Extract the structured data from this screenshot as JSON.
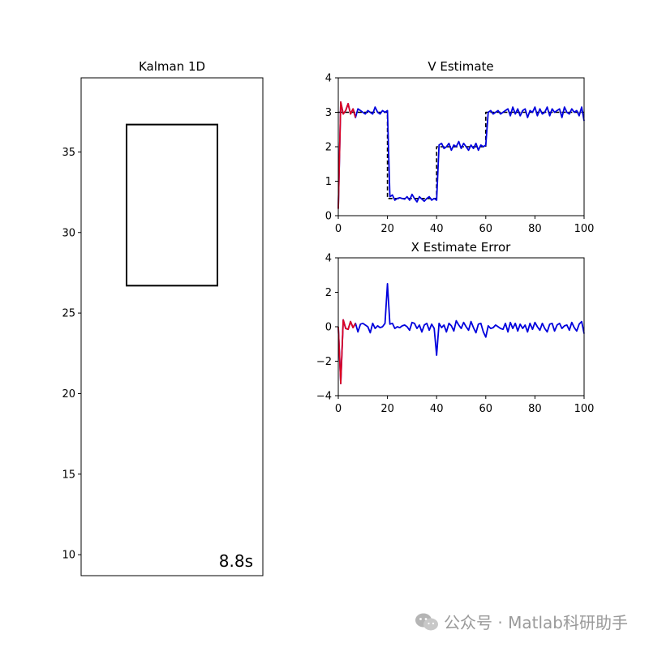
{
  "chart_data": [
    {
      "type": "line",
      "title": "Kalman 1D",
      "xlabel": "",
      "ylabel": "",
      "yticks": [
        "10",
        "15",
        "20",
        "25",
        "30",
        "35"
      ],
      "ylim": [
        8.7,
        39.6
      ],
      "xticks": [],
      "box": {
        "y_bottom": 26.7,
        "y_top": 36.7,
        "color": "#000000"
      },
      "time_label": "8.8s"
    },
    {
      "type": "line",
      "title": "V Estimate",
      "xlabel": "",
      "ylabel": "",
      "xlim": [
        0,
        100
      ],
      "ylim": [
        0,
        4
      ],
      "xticks": [
        "0",
        "20",
        "40",
        "60",
        "80",
        "100"
      ],
      "yticks": [
        "0",
        "1",
        "2",
        "3",
        "4"
      ],
      "series": [
        {
          "role": "truth",
          "color": "#000000",
          "dashed": true,
          "x": [
            0,
            20,
            20,
            40,
            40,
            60,
            60,
            100
          ],
          "y": [
            3,
            3,
            0.5,
            0.5,
            2,
            2,
            3,
            3
          ]
        },
        {
          "role": "estimate",
          "color": "#0000dd",
          "x": [
            0,
            1,
            2,
            3,
            4,
            5,
            6,
            7,
            8,
            9,
            10,
            11,
            12,
            13,
            14,
            15,
            16,
            17,
            18,
            19,
            20,
            21,
            22,
            23,
            24,
            25,
            26,
            27,
            28,
            29,
            30,
            31,
            32,
            33,
            34,
            35,
            36,
            37,
            38,
            39,
            40,
            41,
            42,
            43,
            44,
            45,
            46,
            47,
            48,
            49,
            50,
            51,
            52,
            53,
            54,
            55,
            56,
            57,
            58,
            59,
            60,
            61,
            62,
            63,
            64,
            65,
            66,
            67,
            68,
            69,
            70,
            71,
            72,
            73,
            74,
            75,
            76,
            77,
            78,
            79,
            80,
            81,
            82,
            83,
            84,
            85,
            86,
            87,
            88,
            89,
            90,
            91,
            92,
            93,
            94,
            95,
            96,
            97,
            98,
            99,
            100
          ],
          "y": [
            0.2,
            3.3,
            2.95,
            3.05,
            3.25,
            2.95,
            3.1,
            2.85,
            3.1,
            3.05,
            3.0,
            2.95,
            3.05,
            3.0,
            2.95,
            3.15,
            3.0,
            2.95,
            3.05,
            3.0,
            3.05,
            0.55,
            0.6,
            0.45,
            0.5,
            0.52,
            0.5,
            0.48,
            0.55,
            0.45,
            0.62,
            0.5,
            0.4,
            0.55,
            0.48,
            0.42,
            0.5,
            0.55,
            0.45,
            0.5,
            0.45,
            2.05,
            2.1,
            1.95,
            2.0,
            2.1,
            1.9,
            2.05,
            2.0,
            2.15,
            1.95,
            2.1,
            2.0,
            1.9,
            2.05,
            1.95,
            2.1,
            1.9,
            2.05,
            2.0,
            2.05,
            3.0,
            3.05,
            2.95,
            3.0,
            3.05,
            2.95,
            3.0,
            3.05,
            3.1,
            2.9,
            3.15,
            2.95,
            3.1,
            2.9,
            3.05,
            3.1,
            2.85,
            3.05,
            3.0,
            3.15,
            2.9,
            3.1,
            2.95,
            3.0,
            3.15,
            2.9,
            3.1,
            3.0,
            3.05,
            3.1,
            2.85,
            3.15,
            3.0,
            2.95,
            3.1,
            3.0,
            3.05,
            2.9,
            3.15,
            2.75
          ]
        },
        {
          "role": "early",
          "color": "#dd0022",
          "x": [
            0,
            1,
            2,
            3,
            4,
            5,
            6,
            7
          ],
          "y": [
            0.2,
            3.3,
            2.95,
            3.05,
            3.25,
            2.95,
            3.1,
            2.85
          ]
        }
      ]
    },
    {
      "type": "line",
      "title": "X Estimate Error",
      "xlabel": "",
      "ylabel": "",
      "xlim": [
        0,
        100
      ],
      "ylim": [
        -4,
        4
      ],
      "xticks": [
        "0",
        "20",
        "40",
        "60",
        "80",
        "100"
      ],
      "yticks": [
        "−4",
        "−2",
        "0",
        "2",
        "4"
      ],
      "series": [
        {
          "role": "estimate",
          "color": "#0000dd",
          "x": [
            0,
            1,
            2,
            3,
            4,
            5,
            6,
            7,
            8,
            9,
            10,
            11,
            12,
            13,
            14,
            15,
            16,
            17,
            18,
            19,
            20,
            21,
            22,
            23,
            24,
            25,
            26,
            27,
            28,
            29,
            30,
            31,
            32,
            33,
            34,
            35,
            36,
            37,
            38,
            39,
            40,
            41,
            42,
            43,
            44,
            45,
            46,
            47,
            48,
            49,
            50,
            51,
            52,
            53,
            54,
            55,
            56,
            57,
            58,
            59,
            60,
            61,
            62,
            63,
            64,
            65,
            66,
            67,
            68,
            69,
            70,
            71,
            72,
            73,
            74,
            75,
            76,
            77,
            78,
            79,
            80,
            81,
            82,
            83,
            84,
            85,
            86,
            87,
            88,
            89,
            90,
            91,
            92,
            93,
            94,
            95,
            96,
            97,
            98,
            99,
            100
          ],
          "y": [
            0,
            -3.3,
            0.4,
            -0.1,
            -0.15,
            0.3,
            -0.05,
            0.2,
            -0.3,
            0.15,
            0.2,
            0.1,
            0,
            -0.35,
            0.2,
            -0.1,
            0.05,
            -0.05,
            0,
            0.2,
            2.5,
            0.15,
            0.2,
            -0.1,
            0,
            -0.05,
            0.05,
            0.1,
            0,
            -0.2,
            0.25,
            0.2,
            -0.1,
            0.1,
            -0.3,
            0.1,
            0.2,
            -0.2,
            0.15,
            -0.1,
            -1.65,
            0.2,
            -0.05,
            0.1,
            -0.3,
            0.2,
            0.05,
            -0.25,
            0.35,
            0.1,
            -0.1,
            0.25,
            0,
            -0.2,
            0.3,
            -0.05,
            -0.35,
            0.15,
            0.2,
            -0.3,
            -0.6,
            0.05,
            -0.1,
            -0.05,
            0.1,
            0,
            -0.1,
            -0.15,
            0.2,
            -0.3,
            0.25,
            -0.1,
            0.2,
            -0.25,
            0.15,
            -0.1,
            0.1,
            -0.3,
            0.2,
            -0.15,
            0.25,
            0,
            -0.2,
            0.2,
            -0.1,
            -0.3,
            0.15,
            0.2,
            -0.25,
            0.1,
            0.2,
            -0.1,
            0.05,
            0.1,
            -0.2,
            0.25,
            -0.05,
            -0.25,
            0.15,
            0.3,
            -0.4
          ]
        },
        {
          "role": "early",
          "color": "#dd0022",
          "x": [
            0,
            1,
            2,
            3,
            4,
            5,
            6,
            7
          ],
          "y": [
            0,
            -3.3,
            0.4,
            -0.1,
            -0.15,
            0.3,
            -0.05,
            0.2
          ]
        }
      ]
    }
  ],
  "watermark": {
    "icon": "wechat-icon",
    "text": "公众号 · Matlab科研助手"
  }
}
